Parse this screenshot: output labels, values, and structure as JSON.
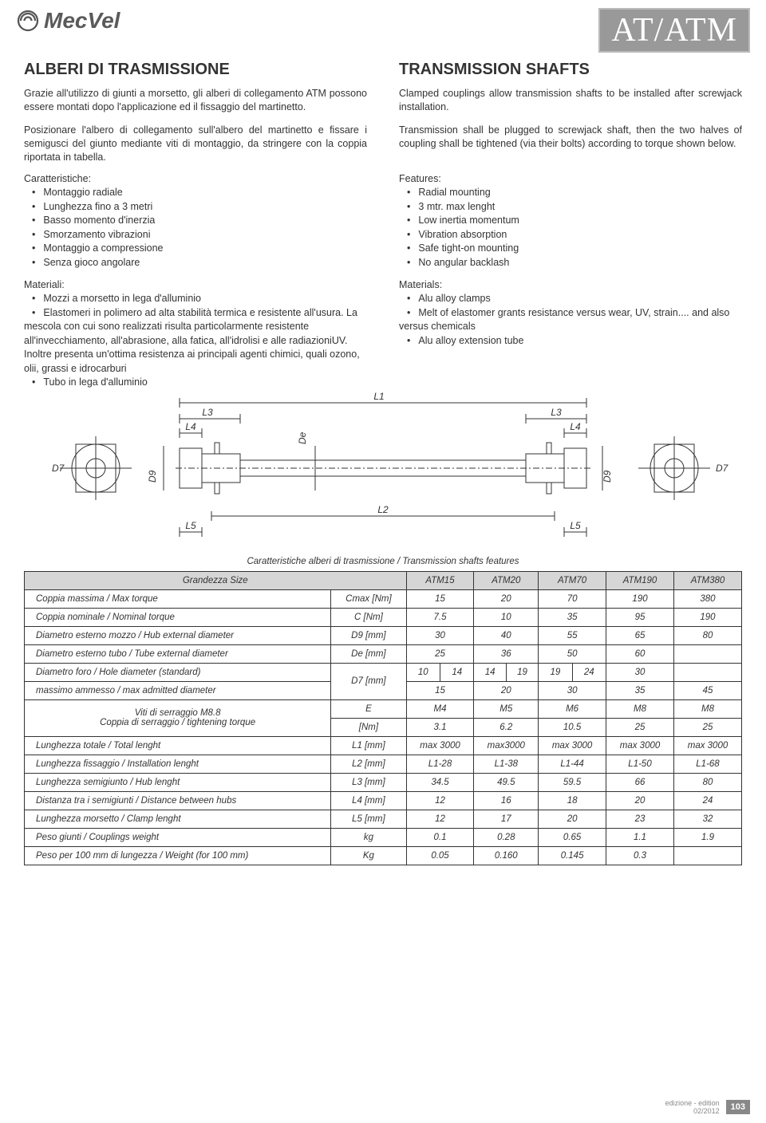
{
  "brand": "MecVel",
  "doc_code": "AT/ATM",
  "left": {
    "title": "ALBERI DI TRASMISSIONE",
    "p1": "Grazie all'utilizzo di giunti a morsetto, gli alberi di collegamento ATM possono essere montati dopo l'applicazione ed il fissaggio del martinetto.",
    "p2": "Posizionare l'albero di collegamento sull'albero del martinetto e fissare i semigusci del giunto mediante viti di montaggio, da stringere con la coppia riportata in tabella.",
    "char_head": "Caratteristiche:",
    "chars": [
      "Montaggio radiale",
      "Lunghezza fino a 3 metri",
      "Basso momento d'inerzia",
      "Smorzamento vibrazioni",
      "Montaggio a compressione",
      "Senza gioco angolare"
    ],
    "mat_head": "Materiali:",
    "mats": [
      "Mozzi a morsetto in lega d'alluminio",
      "Elastomeri in polimero ad alta stabilità termica e resistente all'usura. La mescola con cui sono realizzati risulta particolarmente resistente all'invecchiamento, all'abrasione, alla fatica, all'idrolisi e alle radiazioniUV. Inoltre presenta un'ottima resistenza ai principali agenti chimici, quali ozono, olii, grassi e idrocarburi",
      "Tubo in lega d'alluminio"
    ]
  },
  "right": {
    "title": "TRANSMISSION SHAFTS",
    "p1": "Clamped couplings allow transmission shafts to be installed after screwjack installation.",
    "p2": "Transmission shall be plugged to screwjack shaft, then the two halves of coupling shall be tightened (via their bolts) according to torque shown below.",
    "char_head": "Features:",
    "chars": [
      "Radial mounting",
      "3 mtr. max lenght",
      "Low inertia momentum",
      "Vibration absorption",
      "Safe tight-on mounting",
      "No angular backlash"
    ],
    "mat_head": "Materials:",
    "mats": [
      "Alu alloy clamps",
      "Melt of elastomer grants resistance versus wear, UV, strain.... and also versus chemicals",
      "Alu alloy extension tube"
    ]
  },
  "diagram_labels": {
    "L1": "L1",
    "L2": "L2",
    "L3": "L3",
    "L4": "L4",
    "L5": "L5",
    "De": "De",
    "D7": "D7",
    "D9": "D9"
  },
  "table": {
    "caption": "Caratteristiche alberi di trasmissione / Transmission shafts features",
    "size_label": "Grandezza  Size",
    "sizes": [
      "ATM15",
      "ATM20",
      "ATM70",
      "ATM190",
      "ATM380"
    ],
    "rows": [
      {
        "label": "Coppia massima / Max torque",
        "unit": "Cmax  [Nm]",
        "v": [
          "15",
          "20",
          "70",
          "190",
          "380"
        ]
      },
      {
        "label": "Coppia nominale / Nominal torque",
        "unit": "C [Nm]",
        "v": [
          "7.5",
          "10",
          "35",
          "95",
          "190"
        ]
      },
      {
        "label": "Diametro esterno mozzo  / Hub external diameter",
        "unit": "D9 [mm]",
        "v": [
          "30",
          "40",
          "55",
          "65",
          "80"
        ]
      },
      {
        "label": "Diametro esterno tubo  / Tube external diameter",
        "unit": "De [mm]",
        "v": [
          "25",
          "36",
          "50",
          "60",
          ""
        ]
      },
      {
        "label": "Diametro foro /  Hole diameter (standard)",
        "unit": "D7 [mm]",
        "split": [
          [
            "10",
            "14"
          ],
          [
            "14",
            "19"
          ],
          [
            "19",
            "24"
          ],
          [
            "30"
          ],
          [
            ""
          ]
        ]
      },
      {
        "label": "massimo ammesso / max admitted diameter",
        "unit": "",
        "v": [
          "15",
          "20",
          "30",
          "35",
          "45"
        ]
      },
      {
        "label": "Viti di serraggio M8.8",
        "unit": "E",
        "v": [
          "M4",
          "M5",
          "M6",
          "M8",
          "M8"
        ]
      },
      {
        "label": "Coppia di serraggio / tightening torque",
        "unit": "[Nm]",
        "v": [
          "3.1",
          "6.2",
          "10.5",
          "25",
          "25"
        ]
      },
      {
        "label": "Lunghezza totale / Total lenght",
        "unit": "L1 [mm]",
        "v": [
          "max 3000",
          "max3000",
          "max 3000",
          "max 3000",
          "max 3000"
        ]
      },
      {
        "label": "Lunghezza fissaggio / Installation lenght",
        "unit": "L2 [mm]",
        "v": [
          "L1-28",
          "L1-38",
          "L1-44",
          "L1-50",
          "L1-68"
        ]
      },
      {
        "label": "Lunghezza  semigiunto / Hub lenght",
        "unit": "L3 [mm]",
        "v": [
          "34.5",
          "49.5",
          "59.5",
          "66",
          "80"
        ]
      },
      {
        "label": "Distanza tra i semigiunti / Distance between hubs",
        "unit": "L4 [mm]",
        "v": [
          "12",
          "16",
          "18",
          "20",
          "24"
        ]
      },
      {
        "label": "Lunghezza morsetto  /  Clamp lenght",
        "unit": "L5 [mm]",
        "v": [
          "12",
          "17",
          "20",
          "23",
          "32"
        ]
      },
      {
        "label": "Peso giunti / Couplings weight",
        "unit": "kg",
        "v": [
          "0.1",
          "0.28",
          "0.65",
          "1.1",
          "1.9"
        ]
      },
      {
        "label": "Peso per 100 mm di lungezza / Weight (for 100 mm)",
        "unit": "Kg",
        "v": [
          "0.05",
          "0.160",
          "0.145",
          "0.3",
          ""
        ]
      }
    ]
  },
  "footer": {
    "edition": "edizione - edition",
    "date": "02/2012",
    "page": "103"
  }
}
